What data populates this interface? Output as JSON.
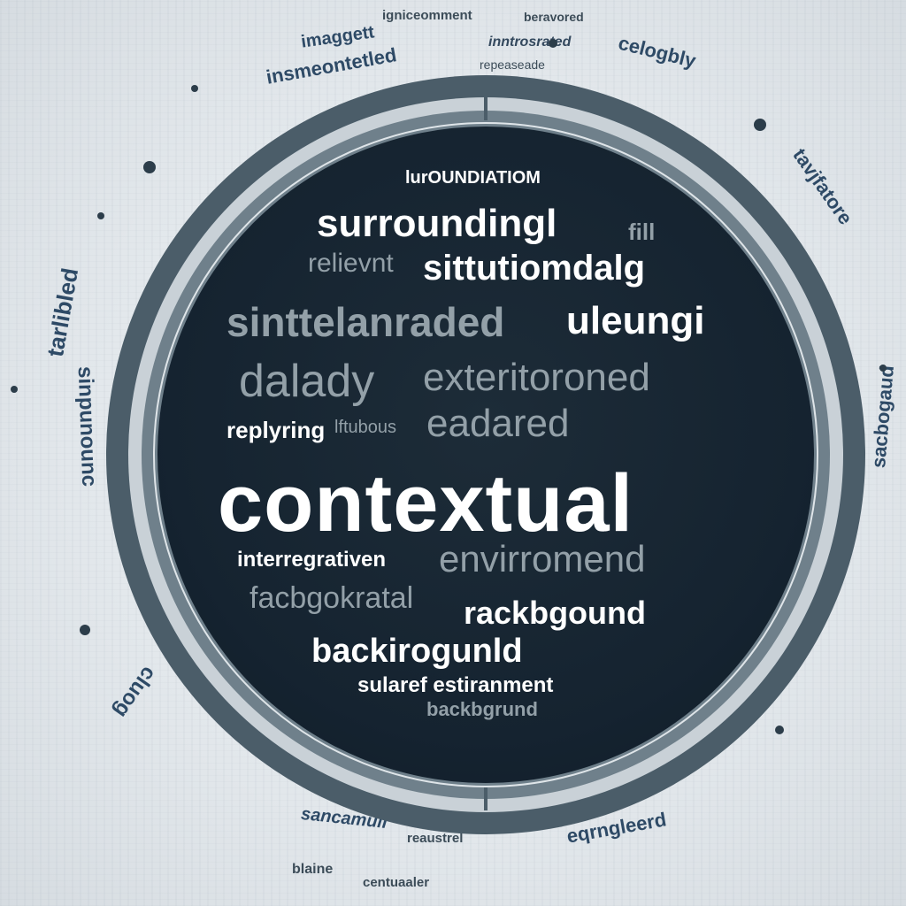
{
  "center": {
    "main_word": "contextual",
    "words": [
      "lurOUNDIATIOM",
      "surroundingl",
      "fill",
      "relievnt",
      "sittutiomdalg",
      "sinttelanraded",
      "uleungi",
      "dalady",
      "exteritoroned",
      "eadared",
      "replyring",
      "lftubous",
      "interregrativen",
      "envirromend",
      "facbgokratal",
      "rackbgound",
      "backirogunld",
      "sularef estiranment",
      "backbgrund"
    ]
  },
  "outer": {
    "words": [
      "igniceomment",
      "beravored",
      "inntrosrated",
      "celogbly",
      "imaggett",
      "insmeontetled",
      "repeaseade",
      "tarlibled",
      "sinpunounc",
      "cluog",
      "blaine",
      "centuaaler",
      "reaustrel",
      "sancamull",
      "eqrngleerd",
      "sacbogaud",
      "tavjfatore"
    ]
  },
  "colors": {
    "background": "#e6eaee",
    "core": "#152330",
    "ring": "#4b5d69",
    "text_light": "#ffffff",
    "text_muted": "#93a0a8"
  }
}
